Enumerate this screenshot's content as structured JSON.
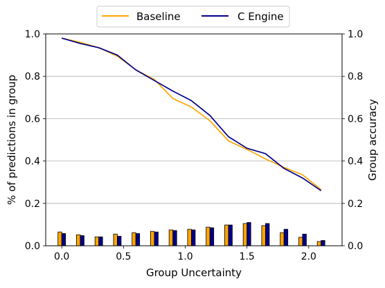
{
  "chart_data": {
    "type": "bar+line",
    "xlabel": "Group Uncertainty",
    "ylabel_left": "% of predictions in group",
    "ylabel_right": "Group accuracy",
    "xlim": [
      -0.13,
      2.27
    ],
    "ylim": [
      0,
      1
    ],
    "xticks": [
      "0.0",
      "0.5",
      "1.0",
      "1.5",
      "2.0"
    ],
    "xtick_values": [
      0,
      0.5,
      1.0,
      1.5,
      2.0
    ],
    "yticks": [
      "0.0",
      "0.2",
      "0.4",
      "0.6",
      "0.8",
      "1.0"
    ],
    "ytick_values": [
      0,
      0.2,
      0.4,
      0.6,
      0.8,
      1.0
    ],
    "grid": "horizontal",
    "legend_position": "top-center",
    "colors": {
      "baseline": "#ffa500",
      "cengine": "#00008b"
    },
    "x": [
      0.0,
      0.15,
      0.3,
      0.45,
      0.6,
      0.75,
      0.9,
      1.05,
      1.2,
      1.35,
      1.5,
      1.65,
      1.8,
      1.95,
      2.1
    ],
    "series": [
      {
        "name": "Baseline",
        "kind": "line",
        "values": [
          0.98,
          0.96,
          0.935,
          0.895,
          0.83,
          0.785,
          0.695,
          0.655,
          0.59,
          0.495,
          0.455,
          0.41,
          0.37,
          0.335,
          0.265
        ]
      },
      {
        "name": "C Engine",
        "kind": "line",
        "values": [
          0.98,
          0.955,
          0.935,
          0.9,
          0.83,
          0.78,
          0.73,
          0.685,
          0.615,
          0.515,
          0.46,
          0.435,
          0.365,
          0.32,
          0.26
        ]
      },
      {
        "name": "Baseline",
        "kind": "bar",
        "values": [
          0.065,
          0.052,
          0.042,
          0.055,
          0.062,
          0.068,
          0.075,
          0.078,
          0.088,
          0.098,
          0.105,
          0.095,
          0.062,
          0.04,
          0.02
        ]
      },
      {
        "name": "C Engine",
        "kind": "bar",
        "values": [
          0.058,
          0.048,
          0.042,
          0.045,
          0.058,
          0.065,
          0.072,
          0.075,
          0.085,
          0.098,
          0.11,
          0.105,
          0.078,
          0.055,
          0.025
        ]
      }
    ]
  }
}
